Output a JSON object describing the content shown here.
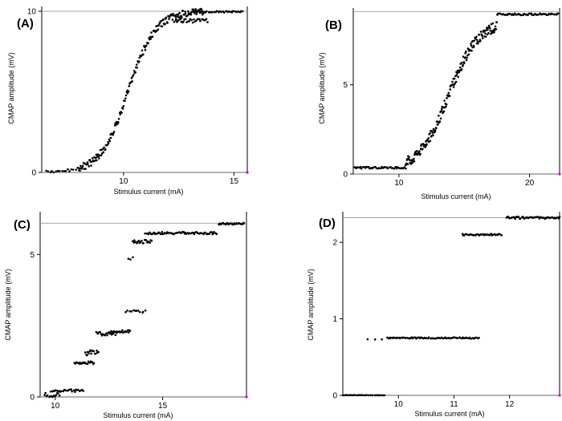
{
  "chart_data": [
    {
      "type": "scatter",
      "panel_label": "(A)",
      "xlabel": "Stimulus current (mA)",
      "ylabel": "CMAP amplitude (mV)",
      "xlim": [
        6.3,
        15.6
      ],
      "ylim": [
        0,
        10.3
      ],
      "xticks": [
        10,
        15
      ],
      "yticks": [
        0,
        10
      ],
      "max_line": 10.0,
      "color": "#000000",
      "segments": [
        {
          "x0": 6.5,
          "x1": 8.0,
          "n": 18,
          "model": "logistic",
          "lo": 0,
          "hi": 10,
          "mid": 10.2,
          "s": 0.62,
          "noise": 0.08
        },
        {
          "x0": 8.0,
          "x1": 13.6,
          "n": 200,
          "model": "logistic",
          "lo": 0,
          "hi": 10,
          "mid": 10.2,
          "s": 0.62,
          "noise": 0.22
        },
        {
          "x0": 12.3,
          "x1": 13.8,
          "n": 30,
          "model": "flat",
          "y": 9.4,
          "noise": 0.12
        },
        {
          "x0": 13.2,
          "x1": 15.4,
          "n": 35,
          "model": "flat",
          "y": 9.97,
          "noise": 0.05
        }
      ]
    },
    {
      "type": "scatter",
      "panel_label": "(B)",
      "xlabel": "Stimulus current (mA)",
      "ylabel": "CMAP amplitude (mV)",
      "xlim": [
        6.5,
        22.3
      ],
      "ylim": [
        0,
        9.3
      ],
      "xticks": [
        10,
        20
      ],
      "yticks": [
        0,
        5
      ],
      "max_line": 9.1,
      "color": "#000000",
      "segments": [
        {
          "x0": 6.6,
          "x1": 10.5,
          "n": 45,
          "model": "flat",
          "y": 0.35,
          "noise": 0.05
        },
        {
          "x0": 10.5,
          "x1": 17.5,
          "n": 200,
          "model": "logistic",
          "lo": 0.2,
          "hi": 8.6,
          "mid": 13.8,
          "s": 1.15,
          "noise": 0.28
        },
        {
          "x0": 17.5,
          "x1": 22.2,
          "n": 55,
          "model": "flat",
          "y": 8.95,
          "noise": 0.05
        }
      ]
    },
    {
      "type": "scatter",
      "panel_label": "(C)",
      "xlabel": "Stimulus current (mA)",
      "ylabel": "CMAP amplitude (mV)",
      "xlim": [
        9.3,
        18.9
      ],
      "ylim": [
        0,
        6.5
      ],
      "xticks": [
        10,
        15
      ],
      "yticks": [
        0,
        5
      ],
      "max_line": 6.1,
      "color": "#000000",
      "segments": [
        {
          "x0": 9.5,
          "x1": 10.2,
          "n": 14,
          "model": "flat",
          "y": 0.05,
          "noise": 0.12
        },
        {
          "x0": 9.8,
          "x1": 11.3,
          "n": 28,
          "model": "flat",
          "y": 0.22,
          "noise": 0.05
        },
        {
          "x0": 10.9,
          "x1": 11.8,
          "n": 22,
          "model": "flat",
          "y": 1.2,
          "noise": 0.05
        },
        {
          "x0": 11.4,
          "x1": 12.0,
          "n": 16,
          "model": "flat",
          "y": 1.55,
          "noise": 0.1
        },
        {
          "x0": 11.9,
          "x1": 12.8,
          "n": 20,
          "model": "flat",
          "y": 2.22,
          "noise": 0.07
        },
        {
          "x0": 12.5,
          "x1": 13.5,
          "n": 22,
          "model": "flat",
          "y": 2.3,
          "noise": 0.06
        },
        {
          "x0": 13.3,
          "x1": 14.2,
          "n": 12,
          "model": "flat",
          "y": 3.0,
          "noise": 0.04
        },
        {
          "x0": 13.4,
          "x1": 13.6,
          "n": 3,
          "model": "flat",
          "y": 4.9,
          "noise": 0.1
        },
        {
          "x0": 13.6,
          "x1": 14.5,
          "n": 20,
          "model": "flat",
          "y": 5.45,
          "noise": 0.06
        },
        {
          "x0": 14.2,
          "x1": 17.5,
          "n": 70,
          "model": "flat",
          "y": 5.75,
          "noise": 0.04
        },
        {
          "x0": 17.6,
          "x1": 18.8,
          "n": 30,
          "model": "flat",
          "y": 6.08,
          "noise": 0.03
        }
      ]
    },
    {
      "type": "scatter",
      "panel_label": "(D)",
      "xlabel": "Stimulus current (mA)",
      "ylabel": "CMAP amplitude (mV)",
      "xlim": [
        9.0,
        12.9
      ],
      "ylim": [
        0,
        2.4
      ],
      "xticks": [
        10,
        11,
        12
      ],
      "yticks": [
        0,
        1,
        2
      ],
      "max_line": 2.32,
      "color": "#000000",
      "segments": [
        {
          "x0": 9.0,
          "x1": 9.75,
          "n": 30,
          "model": "flat",
          "y": 0.0,
          "noise": 0.005
        },
        {
          "x0": 9.45,
          "x1": 9.7,
          "n": 3,
          "model": "flat",
          "y": 0.74,
          "noise": 0.01
        },
        {
          "x0": 9.8,
          "x1": 11.45,
          "n": 80,
          "model": "flat",
          "y": 0.75,
          "noise": 0.008
        },
        {
          "x0": 11.15,
          "x1": 11.85,
          "n": 35,
          "model": "flat",
          "y": 2.1,
          "noise": 0.01
        },
        {
          "x0": 11.95,
          "x1": 12.9,
          "n": 55,
          "model": "flat",
          "y": 2.32,
          "noise": 0.015
        }
      ]
    }
  ]
}
